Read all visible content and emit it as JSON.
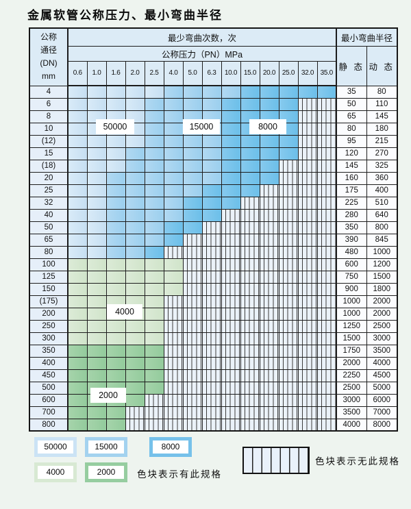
{
  "title": "金属软管公称压力、最小弯曲半径",
  "table": {
    "corner": {
      "line1": "公称",
      "line2": "通径",
      "line3": "(DN)",
      "line4": "mm"
    },
    "bend_cycles_header": "最少弯曲次数，次",
    "pressure_header": "公称压力（PN）MPa",
    "radius_header": "最小弯曲半径",
    "static_label": "静 态",
    "dynamic_label": "动 态",
    "pressures": [
      "0.6",
      "1.0",
      "1.6",
      "2.0",
      "2.5",
      "4.0",
      "5.0",
      "6.3",
      "10.0",
      "15.0",
      "20.0",
      "25.0",
      "32.0",
      "35.0"
    ],
    "rows": [
      {
        "dn": "4",
        "zone": "blue",
        "mid": 5,
        "dark": 9,
        "last": 13,
        "static": "35",
        "dynamic": "80"
      },
      {
        "dn": "6",
        "zone": "blue",
        "mid": 4,
        "dark": 8,
        "last": 11,
        "static": "50",
        "dynamic": "110"
      },
      {
        "dn": "8",
        "zone": "blue",
        "mid": 4,
        "dark": 8,
        "last": 11,
        "static": "65",
        "dynamic": "145"
      },
      {
        "dn": "10",
        "zone": "blue",
        "mid": 4,
        "dark": 8,
        "last": 11,
        "static": "80",
        "dynamic": "180"
      },
      {
        "dn": "(12)",
        "zone": "blue",
        "mid": 4,
        "dark": 8,
        "last": 11,
        "static": "95",
        "dynamic": "215"
      },
      {
        "dn": "15",
        "zone": "blue",
        "mid": 3,
        "dark": 8,
        "last": 11,
        "static": "120",
        "dynamic": "270"
      },
      {
        "dn": "(18)",
        "zone": "blue",
        "mid": 3,
        "dark": 8,
        "last": 10,
        "static": "145",
        "dynamic": "325"
      },
      {
        "dn": "20",
        "zone": "blue",
        "mid": 2,
        "dark": 8,
        "last": 10,
        "static": "160",
        "dynamic": "360"
      },
      {
        "dn": "25",
        "zone": "blue",
        "mid": 2,
        "dark": 7,
        "last": 9,
        "static": "175",
        "dynamic": "400"
      },
      {
        "dn": "32",
        "zone": "blue",
        "mid": 2,
        "dark": 6,
        "last": 8,
        "static": "225",
        "dynamic": "510"
      },
      {
        "dn": "40",
        "zone": "blue",
        "mid": 2,
        "dark": 6,
        "last": 7,
        "static": "280",
        "dynamic": "640"
      },
      {
        "dn": "50",
        "zone": "blue",
        "mid": 2,
        "dark": 5,
        "last": 6,
        "static": "350",
        "dynamic": "800"
      },
      {
        "dn": "65",
        "zone": "blue",
        "mid": 2,
        "dark": 5,
        "last": 5,
        "static": "390",
        "dynamic": "845"
      },
      {
        "dn": "80",
        "zone": "blue",
        "mid": 2,
        "dark": 4,
        "last": 4,
        "static": "480",
        "dynamic": "1000"
      },
      {
        "dn": "100",
        "zone": "green4000",
        "last": 5,
        "static": "600",
        "dynamic": "1200"
      },
      {
        "dn": "125",
        "zone": "green4000",
        "last": 5,
        "static": "750",
        "dynamic": "1500"
      },
      {
        "dn": "150",
        "zone": "green4000",
        "last": 5,
        "static": "900",
        "dynamic": "1800"
      },
      {
        "dn": "(175)",
        "zone": "green4000",
        "last": 4,
        "static": "1000",
        "dynamic": "2000"
      },
      {
        "dn": "200",
        "zone": "green4000",
        "last": 4,
        "static": "1000",
        "dynamic": "2000"
      },
      {
        "dn": "250",
        "zone": "green4000",
        "last": 4,
        "static": "1250",
        "dynamic": "2500"
      },
      {
        "dn": "300",
        "zone": "green4000",
        "last": 4,
        "static": "1500",
        "dynamic": "3000"
      },
      {
        "dn": "350",
        "zone": "green2000",
        "last": 4,
        "static": "1750",
        "dynamic": "3500"
      },
      {
        "dn": "400",
        "zone": "green2000",
        "last": 4,
        "static": "2000",
        "dynamic": "4000"
      },
      {
        "dn": "450",
        "zone": "green2000",
        "last": 4,
        "static": "2250",
        "dynamic": "4500"
      },
      {
        "dn": "500",
        "zone": "green2000",
        "last": 4,
        "static": "2500",
        "dynamic": "5000"
      },
      {
        "dn": "600",
        "zone": "green2000",
        "last": 3,
        "static": "3000",
        "dynamic": "6000"
      },
      {
        "dn": "700",
        "zone": "green2000",
        "last": 2,
        "static": "3500",
        "dynamic": "7000"
      },
      {
        "dn": "800",
        "zone": "green2000",
        "last": 2,
        "static": "4000",
        "dynamic": "8000"
      }
    ],
    "zone_labels": [
      {
        "text": "50000"
      },
      {
        "text": "15000"
      },
      {
        "text": "8000"
      },
      {
        "text": "4000"
      },
      {
        "text": "2000"
      }
    ]
  },
  "legend": {
    "swatches": [
      {
        "label": "50000",
        "color": "#cbe3f5"
      },
      {
        "label": "15000",
        "color": "#a3d2ef"
      },
      {
        "label": "8000",
        "color": "#76c1ea"
      },
      {
        "label": "4000",
        "color": "#d8e9d3"
      },
      {
        "label": "2000",
        "color": "#96cda0"
      }
    ],
    "has_spec_text": "色块表示有此规格",
    "no_spec_text": "色块表示无此规格"
  },
  "colors": {
    "page_bg": "#eef4ef",
    "header_bg": "#dcebf6",
    "dn_col_bg": "#e6eff9",
    "zone_50000": "#cde4f4",
    "zone_15000": "#a5d3ef",
    "zone_8000": "#74c2ea",
    "zone_4000": "#d6e8d2",
    "zone_2000": "#99cfa2",
    "stripe_bg": "#ebf2f9",
    "grid_line": "#1c1c1c"
  }
}
